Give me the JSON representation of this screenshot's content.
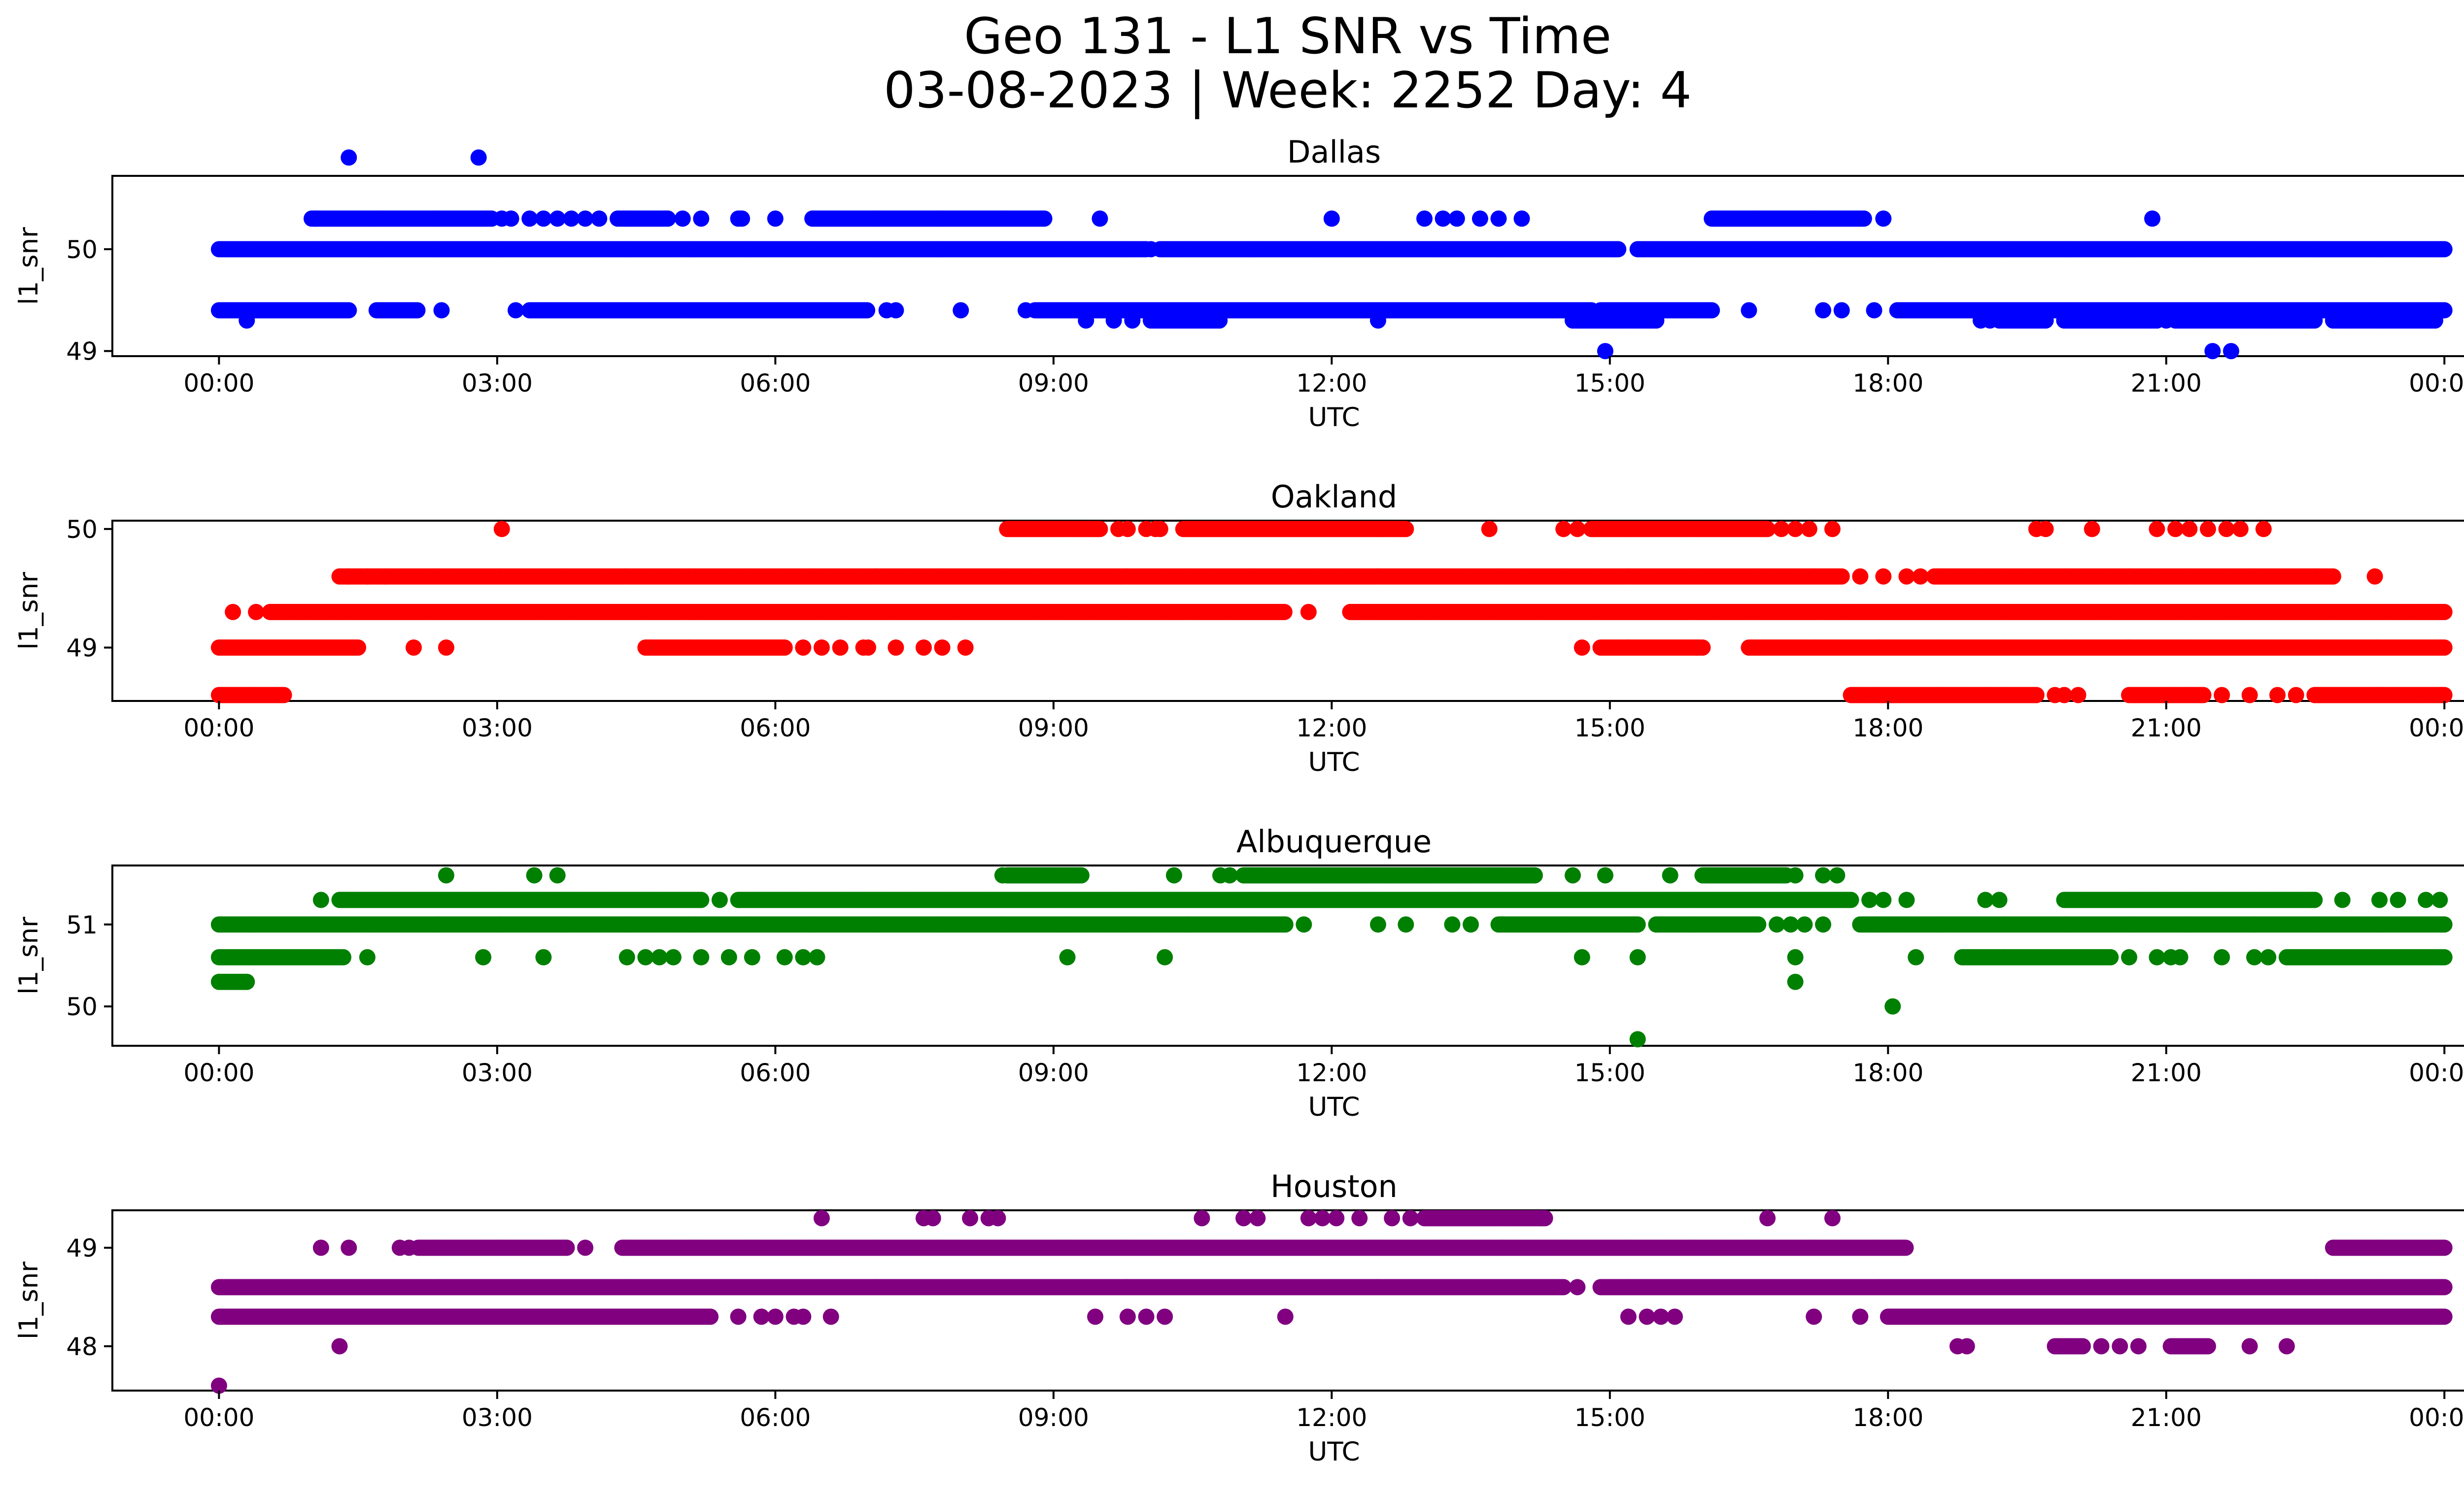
{
  "figure": {
    "title_line1": "Geo 131 - L1 SNR vs Time",
    "title_line2": "03-08-2023 | Week: 2252 Day: 4"
  },
  "chart_data": [
    {
      "type": "scatter",
      "title": "Dallas",
      "xlabel": "UTC",
      "ylabel": "l1_snr",
      "color": "#0000ff",
      "x_range_hours": [
        -1.15,
        25.2
      ],
      "x_ticks": [
        "00:00",
        "03:00",
        "06:00",
        "09:00",
        "12:00",
        "15:00",
        "18:00",
        "21:00",
        "00:00"
      ],
      "ylim": [
        48.95,
        50.72
      ],
      "y_ticks": [
        49,
        50
      ],
      "grid": false,
      "levels": [
        {
          "y": 50.0,
          "segments": [
            [
              0.0,
              10.0
            ],
            [
              10.15,
              15.1
            ],
            [
              15.3,
              24.0
            ]
          ],
          "singles": [
            10.05,
            15.05
          ]
        },
        {
          "y": 50.3,
          "segments": [
            [
              1.0,
              2.95
            ],
            [
              4.3,
              4.85
            ],
            [
              5.6,
              5.65
            ],
            [
              6.4,
              8.9
            ],
            [
              16.1,
              17.75
            ]
          ],
          "singles": [
            1.05,
            3.05,
            3.15,
            3.35,
            3.5,
            3.65,
            3.8,
            3.95,
            4.1,
            5.0,
            5.2,
            6.0,
            9.5,
            12.0,
            13.0,
            13.2,
            13.35,
            13.6,
            13.8,
            14.05,
            17.95,
            20.85
          ]
        },
        {
          "y": 49.4,
          "segments": [
            [
              0.0,
              1.4
            ],
            [
              1.7,
              2.15
            ],
            [
              3.35,
              7.0
            ],
            [
              8.8,
              14.8
            ],
            [
              14.9,
              16.1
            ],
            [
              18.1,
              24.0
            ]
          ],
          "singles": [
            2.4,
            3.2,
            7.2,
            7.3,
            8.0,
            8.7,
            16.5,
            17.3,
            17.5,
            17.85
          ]
        },
        {
          "y": 49.3,
          "segments": [
            [
              10.05,
              10.8
            ],
            [
              14.6,
              15.5
            ],
            [
              19.2,
              19.7
            ],
            [
              19.9,
              20.9
            ],
            [
              21.1,
              22.6
            ],
            [
              22.8,
              23.9
            ]
          ],
          "singles": [
            0.3,
            9.35,
            9.65,
            9.85,
            12.5,
            19.0,
            19.1,
            21.0
          ]
        },
        {
          "y": 50.9,
          "segments": [],
          "singles": [
            1.4,
            2.8
          ]
        },
        {
          "y": 49.0,
          "segments": [],
          "singles": [
            14.95,
            21.5,
            21.7
          ]
        }
      ]
    },
    {
      "type": "scatter",
      "title": "Oakland",
      "xlabel": "UTC",
      "ylabel": "l1_snr",
      "color": "#ff0000",
      "x_range_hours": [
        -1.15,
        25.2
      ],
      "x_ticks": [
        "00:00",
        "03:00",
        "06:00",
        "09:00",
        "12:00",
        "15:00",
        "18:00",
        "21:00",
        "00:00"
      ],
      "ylim": [
        48.55,
        50.07
      ],
      "y_ticks": [
        49,
        50
      ],
      "grid": false,
      "levels": [
        {
          "y": 50.0,
          "segments": [
            [
              8.5,
              9.5
            ],
            [
              10.4,
              12.8
            ],
            [
              14.8,
              16.7
            ]
          ],
          "singles": [
            3.05,
            9.7,
            9.8,
            10.0,
            10.1,
            10.15,
            13.7,
            14.5,
            14.65,
            16.85,
            17.0,
            17.15,
            17.4,
            19.6,
            19.7,
            20.2,
            20.9,
            21.1,
            21.25,
            21.45,
            21.65,
            21.8,
            22.05
          ]
        },
        {
          "y": 49.6,
          "segments": [
            [
              1.3,
              17.5
            ],
            [
              18.5,
              22.8
            ]
          ],
          "singles": [
            1.4,
            1.6,
            1.8,
            17.7,
            17.95,
            18.2,
            18.35,
            23.25
          ]
        },
        {
          "y": 49.3,
          "segments": [
            [
              0.55,
              11.5
            ],
            [
              12.2,
              24.0
            ]
          ],
          "singles": [
            0.15,
            0.4,
            11.75
          ]
        },
        {
          "y": 49.0,
          "segments": [
            [
              0.0,
              1.5
            ],
            [
              4.6,
              6.1
            ],
            [
              14.9,
              16.0
            ],
            [
              16.5,
              24.0
            ]
          ],
          "singles": [
            2.1,
            2.45,
            6.3,
            6.5,
            6.7,
            6.95,
            7.0,
            7.3,
            7.6,
            7.8,
            8.05,
            14.7
          ]
        },
        {
          "y": 48.6,
          "segments": [
            [
              0.0,
              0.7
            ],
            [
              17.6,
              19.6
            ],
            [
              20.6,
              21.4
            ],
            [
              22.6,
              24.0
            ]
          ],
          "singles": [
            19.8,
            19.9,
            20.05,
            21.6,
            21.9,
            22.2,
            22.4
          ]
        }
      ]
    },
    {
      "type": "scatter",
      "title": "Albuquerque",
      "xlabel": "UTC",
      "ylabel": "l1_snr",
      "color": "#008000",
      "x_range_hours": [
        -1.15,
        25.2
      ],
      "x_ticks": [
        "00:00",
        "03:00",
        "06:00",
        "09:00",
        "12:00",
        "15:00",
        "18:00",
        "21:00",
        "00:00"
      ],
      "ylim": [
        49.52,
        51.72
      ],
      "y_ticks": [
        50,
        51
      ],
      "grid": false,
      "levels": [
        {
          "y": 51.6,
          "segments": [
            [
              8.5,
              9.3
            ],
            [
              11.05,
              14.2
            ],
            [
              16.0,
              16.9
            ]
          ],
          "singles": [
            2.45,
            3.4,
            3.65,
            8.45,
            10.3,
            10.8,
            10.9,
            14.6,
            14.95,
            15.65,
            17.0,
            17.3,
            17.45
          ]
        },
        {
          "y": 51.3,
          "segments": [
            [
              1.3,
              5.2
            ],
            [
              5.6,
              17.6
            ],
            [
              19.9,
              22.6
            ]
          ],
          "singles": [
            1.1,
            5.4,
            17.8,
            17.95,
            18.2,
            19.05,
            19.2,
            22.9,
            23.3,
            23.5,
            23.8,
            23.95
          ]
        },
        {
          "y": 51.0,
          "segments": [
            [
              0.0,
              11.5
            ],
            [
              13.8,
              15.3
            ],
            [
              15.5,
              16.6
            ],
            [
              17.7,
              24.0
            ]
          ],
          "singles": [
            11.7,
            12.5,
            12.8,
            13.3,
            13.5,
            16.8,
            16.95,
            17.1,
            17.3
          ]
        },
        {
          "y": 50.6,
          "segments": [
            [
              0.0,
              1.35
            ],
            [
              18.8,
              20.4
            ],
            [
              22.3,
              24.0
            ]
          ],
          "singles": [
            1.6,
            2.85,
            3.5,
            4.4,
            4.6,
            4.75,
            4.9,
            5.2,
            5.5,
            5.75,
            6.1,
            6.3,
            6.45,
            9.15,
            10.2,
            14.7,
            15.3,
            17.0,
            18.3,
            20.6,
            20.9,
            21.05,
            21.15,
            21.6,
            21.95,
            22.1
          ]
        },
        {
          "y": 50.3,
          "segments": [
            [
              0.0,
              0.3
            ]
          ],
          "singles": [
            17.0
          ]
        },
        {
          "y": 50.0,
          "segments": [],
          "singles": [
            18.05
          ]
        },
        {
          "y": 49.6,
          "segments": [],
          "singles": [
            15.3
          ]
        }
      ]
    },
    {
      "type": "scatter",
      "title": "Houston",
      "xlabel": "UTC",
      "ylabel": "l1_snr",
      "color": "#800080",
      "x_range_hours": [
        -1.15,
        25.2
      ],
      "x_ticks": [
        "00:00",
        "03:00",
        "06:00",
        "09:00",
        "12:00",
        "15:00",
        "18:00",
        "21:00",
        "00:00"
      ],
      "ylim": [
        47.55,
        49.38
      ],
      "y_ticks": [
        48,
        49
      ],
      "grid": false,
      "levels": [
        {
          "y": 49.3,
          "segments": [
            [
              13.0,
              14.3
            ]
          ],
          "singles": [
            6.5,
            7.6,
            7.7,
            8.1,
            8.3,
            8.4,
            10.6,
            11.05,
            11.2,
            11.75,
            11.9,
            12.05,
            12.3,
            12.65,
            12.85,
            16.7,
            17.4
          ]
        },
        {
          "y": 49.0,
          "segments": [
            [
              2.15,
              3.75
            ],
            [
              4.35,
              18.2
            ],
            [
              22.8,
              24.0
            ]
          ],
          "singles": [
            1.1,
            1.4,
            1.95,
            2.05,
            3.95
          ]
        },
        {
          "y": 48.6,
          "segments": [
            [
              0.0,
              14.5
            ],
            [
              14.9,
              24.0
            ]
          ],
          "singles": [
            14.65
          ]
        },
        {
          "y": 48.3,
          "segments": [
            [
              0.0,
              5.3
            ],
            [
              18.0,
              24.0
            ]
          ],
          "singles": [
            5.6,
            5.85,
            6.0,
            6.2,
            6.3,
            6.6,
            9.45,
            9.8,
            10.0,
            10.2,
            11.5,
            15.2,
            15.4,
            15.55,
            15.7,
            17.2,
            17.7
          ]
        },
        {
          "y": 48.0,
          "segments": [
            [
              19.8,
              20.1
            ],
            [
              21.05,
              21.45
            ]
          ],
          "singles": [
            1.3,
            18.75,
            18.85,
            20.3,
            20.5,
            20.7,
            21.9,
            22.3
          ]
        },
        {
          "y": 47.6,
          "segments": [],
          "singles": [
            0.0
          ]
        }
      ]
    }
  ]
}
